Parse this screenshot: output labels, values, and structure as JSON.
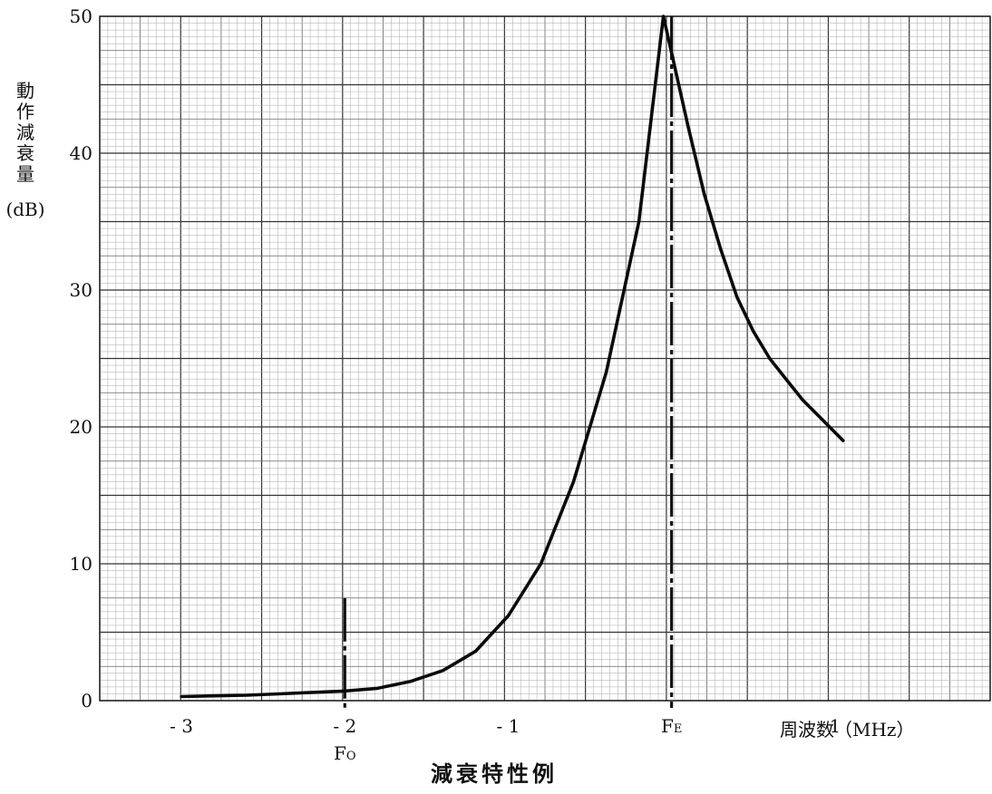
{
  "chart_data": {
    "type": "line",
    "title": "減衰特性例",
    "xlabel": "周波数（MHz）",
    "ylabel_chars": [
      "動",
      "作",
      "減",
      "衰",
      "量"
    ],
    "ylabel_unit": "(dB)",
    "xlim": [
      -3.5,
      1.95
    ],
    "ylim": [
      0,
      50
    ],
    "grid": true,
    "x_ticks": [
      {
        "value": -3,
        "label": "- 3"
      },
      {
        "value": -2,
        "label": "- 2"
      },
      {
        "value": -1,
        "label": "- 1"
      },
      {
        "value": 0,
        "label": "FE"
      },
      {
        "value": 1,
        "label": "1"
      }
    ],
    "y_ticks": [
      {
        "value": 0,
        "label": "0"
      },
      {
        "value": 10,
        "label": "10"
      },
      {
        "value": 20,
        "label": "20"
      },
      {
        "value": 30,
        "label": "30"
      },
      {
        "value": 40,
        "label": "40"
      },
      {
        "value": 50,
        "label": "50"
      }
    ],
    "markers": [
      {
        "name": "FO",
        "x": -2,
        "y_top": 7.5,
        "sublabel": "FO"
      },
      {
        "name": "FE",
        "x": 0,
        "y_top": 50
      }
    ],
    "series": [
      {
        "x": [
          -3.0,
          -2.8,
          -2.6,
          -2.4,
          -2.2,
          -2.0,
          -1.8,
          -1.6,
          -1.4,
          -1.2,
          -1.0,
          -0.8,
          -0.6,
          -0.4,
          -0.2,
          -0.05,
          0.1,
          0.2,
          0.3,
          0.4,
          0.5,
          0.6,
          0.7,
          0.8,
          0.9,
          1.05
        ],
        "y": [
          0.3,
          0.35,
          0.4,
          0.5,
          0.6,
          0.7,
          0.9,
          1.4,
          2.2,
          3.6,
          6.2,
          10.0,
          16.0,
          24.0,
          35.0,
          50.0,
          42.0,
          37.0,
          33.0,
          29.5,
          27.0,
          25.0,
          23.5,
          22.0,
          20.8,
          19.0
        ]
      }
    ]
  }
}
